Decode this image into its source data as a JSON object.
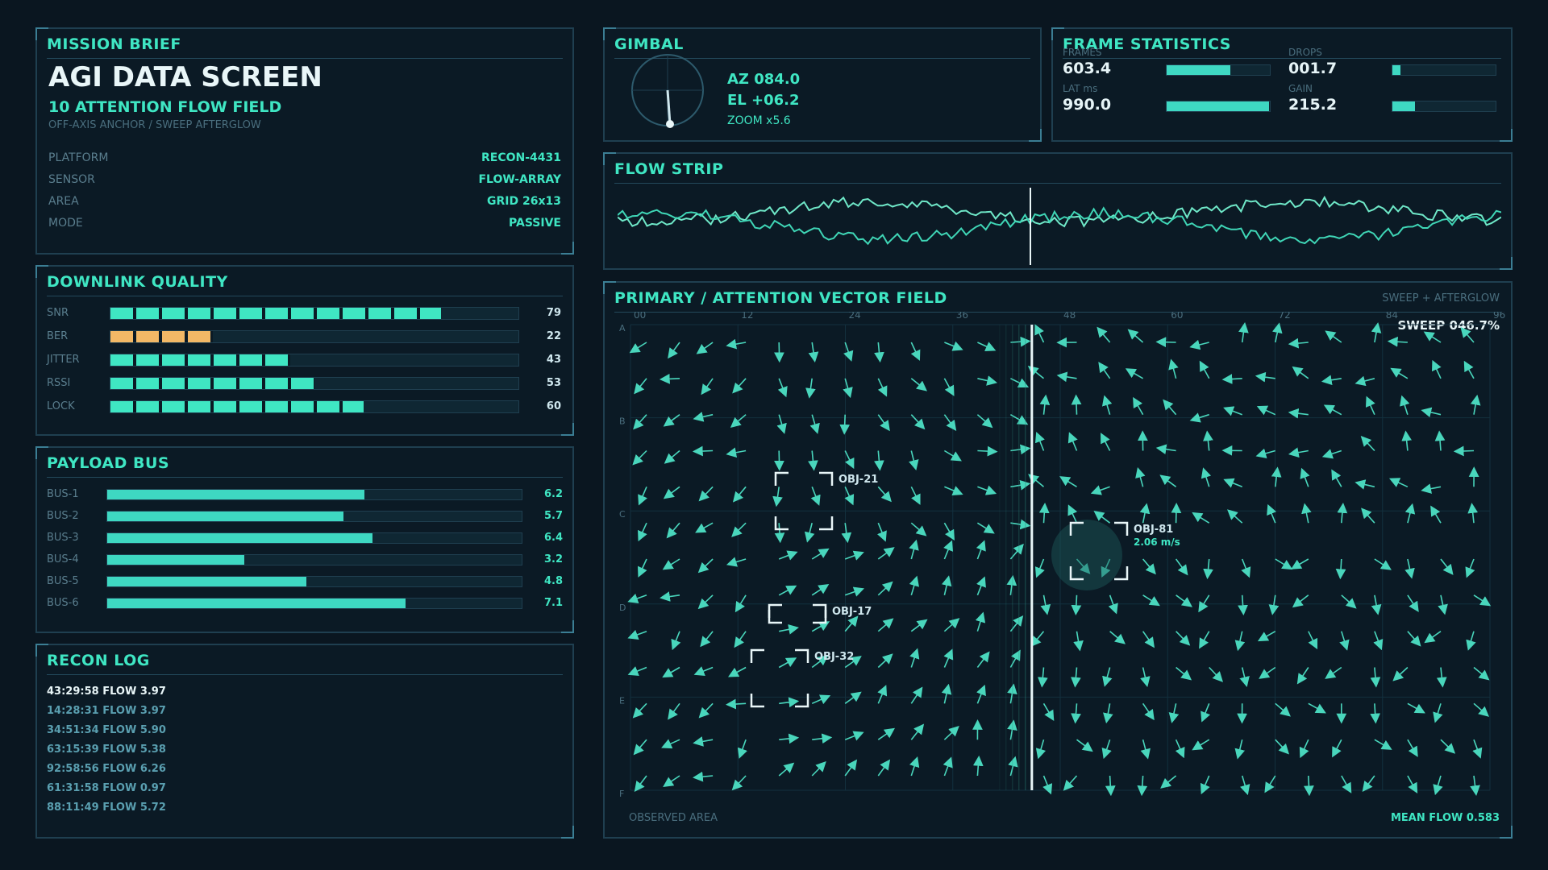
{
  "mission": {
    "title": "MISSION BRIEF",
    "headline": "AGI DATA SCREEN",
    "subheadline": "10 ATTENTION FLOW FIELD",
    "caption": "OFF-AXIS ANCHOR / SWEEP AFTERGLOW",
    "rows": [
      {
        "key": "PLATFORM",
        "value": "RECON-4431"
      },
      {
        "key": "SENSOR",
        "value": "FLOW-ARRAY"
      },
      {
        "key": "AREA",
        "value": "GRID 26x13"
      },
      {
        "key": "MODE",
        "value": "PASSIVE"
      }
    ]
  },
  "downlink": {
    "title": "DOWNLINK QUALITY",
    "rows": [
      {
        "label": "SNR",
        "value": "79",
        "fraction": 0.81,
        "color": "mint"
      },
      {
        "label": "BER",
        "value": "22",
        "fraction": 0.25,
        "color": "amber"
      },
      {
        "label": "JITTER",
        "value": "43",
        "fraction": 0.44,
        "color": "mint"
      },
      {
        "label": "RSSI",
        "value": "53",
        "fraction": 0.5,
        "color": "mint"
      },
      {
        "label": "LOCK",
        "value": "60",
        "fraction": 0.62,
        "color": "mint"
      }
    ]
  },
  "payload": {
    "title": "PAYLOAD BUS",
    "rows": [
      {
        "label": "BUS-1",
        "value": "6.2",
        "fraction": 0.62
      },
      {
        "label": "BUS-2",
        "value": "5.7",
        "fraction": 0.57
      },
      {
        "label": "BUS-3",
        "value": "6.4",
        "fraction": 0.64
      },
      {
        "label": "BUS-4",
        "value": "3.2",
        "fraction": 0.33
      },
      {
        "label": "BUS-5",
        "value": "4.8",
        "fraction": 0.48
      },
      {
        "label": "BUS-6",
        "value": "7.1",
        "fraction": 0.72
      }
    ]
  },
  "recon": {
    "title": "RECON LOG",
    "lines": [
      "43:29:58 FLOW 3.97",
      "14:28:31 FLOW 3.97",
      "34:51:34 FLOW 5.90",
      "63:15:39 FLOW 5.38",
      "92:58:56 FLOW 6.26",
      "61:31:58 FLOW 0.97",
      "88:11:49 FLOW 5.72"
    ]
  },
  "gimbal": {
    "title": "GIMBAL",
    "az": "AZ 084.0",
    "el": "EL +06.2",
    "zoom": "ZOOM x5.6"
  },
  "frame_stats": {
    "title": "FRAME STATISTICS",
    "items": [
      {
        "label": "FRAMES",
        "value": "603.4",
        "fraction": 0.62
      },
      {
        "label": "DROPS",
        "value": "001.7",
        "fraction": 0.08
      },
      {
        "label": "LAT ms",
        "value": "990.0",
        "fraction": 0.99
      },
      {
        "label": "GAIN",
        "value": "215.2",
        "fraction": 0.22
      }
    ]
  },
  "flow_strip": {
    "title": "FLOW STRIP"
  },
  "vector_field": {
    "title": "PRIMARY / ATTENTION VECTOR FIELD",
    "mode": "SWEEP + AFTERGLOW",
    "sweep": "SWEEP 046.7%",
    "x_ticks": [
      "00",
      "12",
      "24",
      "36",
      "48",
      "60",
      "72",
      "84",
      "96"
    ],
    "y_ticks": [
      "A",
      "B",
      "C",
      "D",
      "E",
      "F"
    ],
    "footer_left": "OBSERVED AREA",
    "footer_right": "MEAN FLOW 0.583",
    "objects": [
      {
        "id": "OBJ-21",
        "speed": ""
      },
      {
        "id": "OBJ-81",
        "speed": "2.06 m/s"
      },
      {
        "id": "OBJ-17",
        "speed": ""
      },
      {
        "id": "OBJ-32",
        "speed": ""
      }
    ]
  },
  "colors": {
    "accent": "#3fe6c3",
    "amber": "#f2b866",
    "panel": "#0b1a25",
    "border": "#1f3f50"
  }
}
